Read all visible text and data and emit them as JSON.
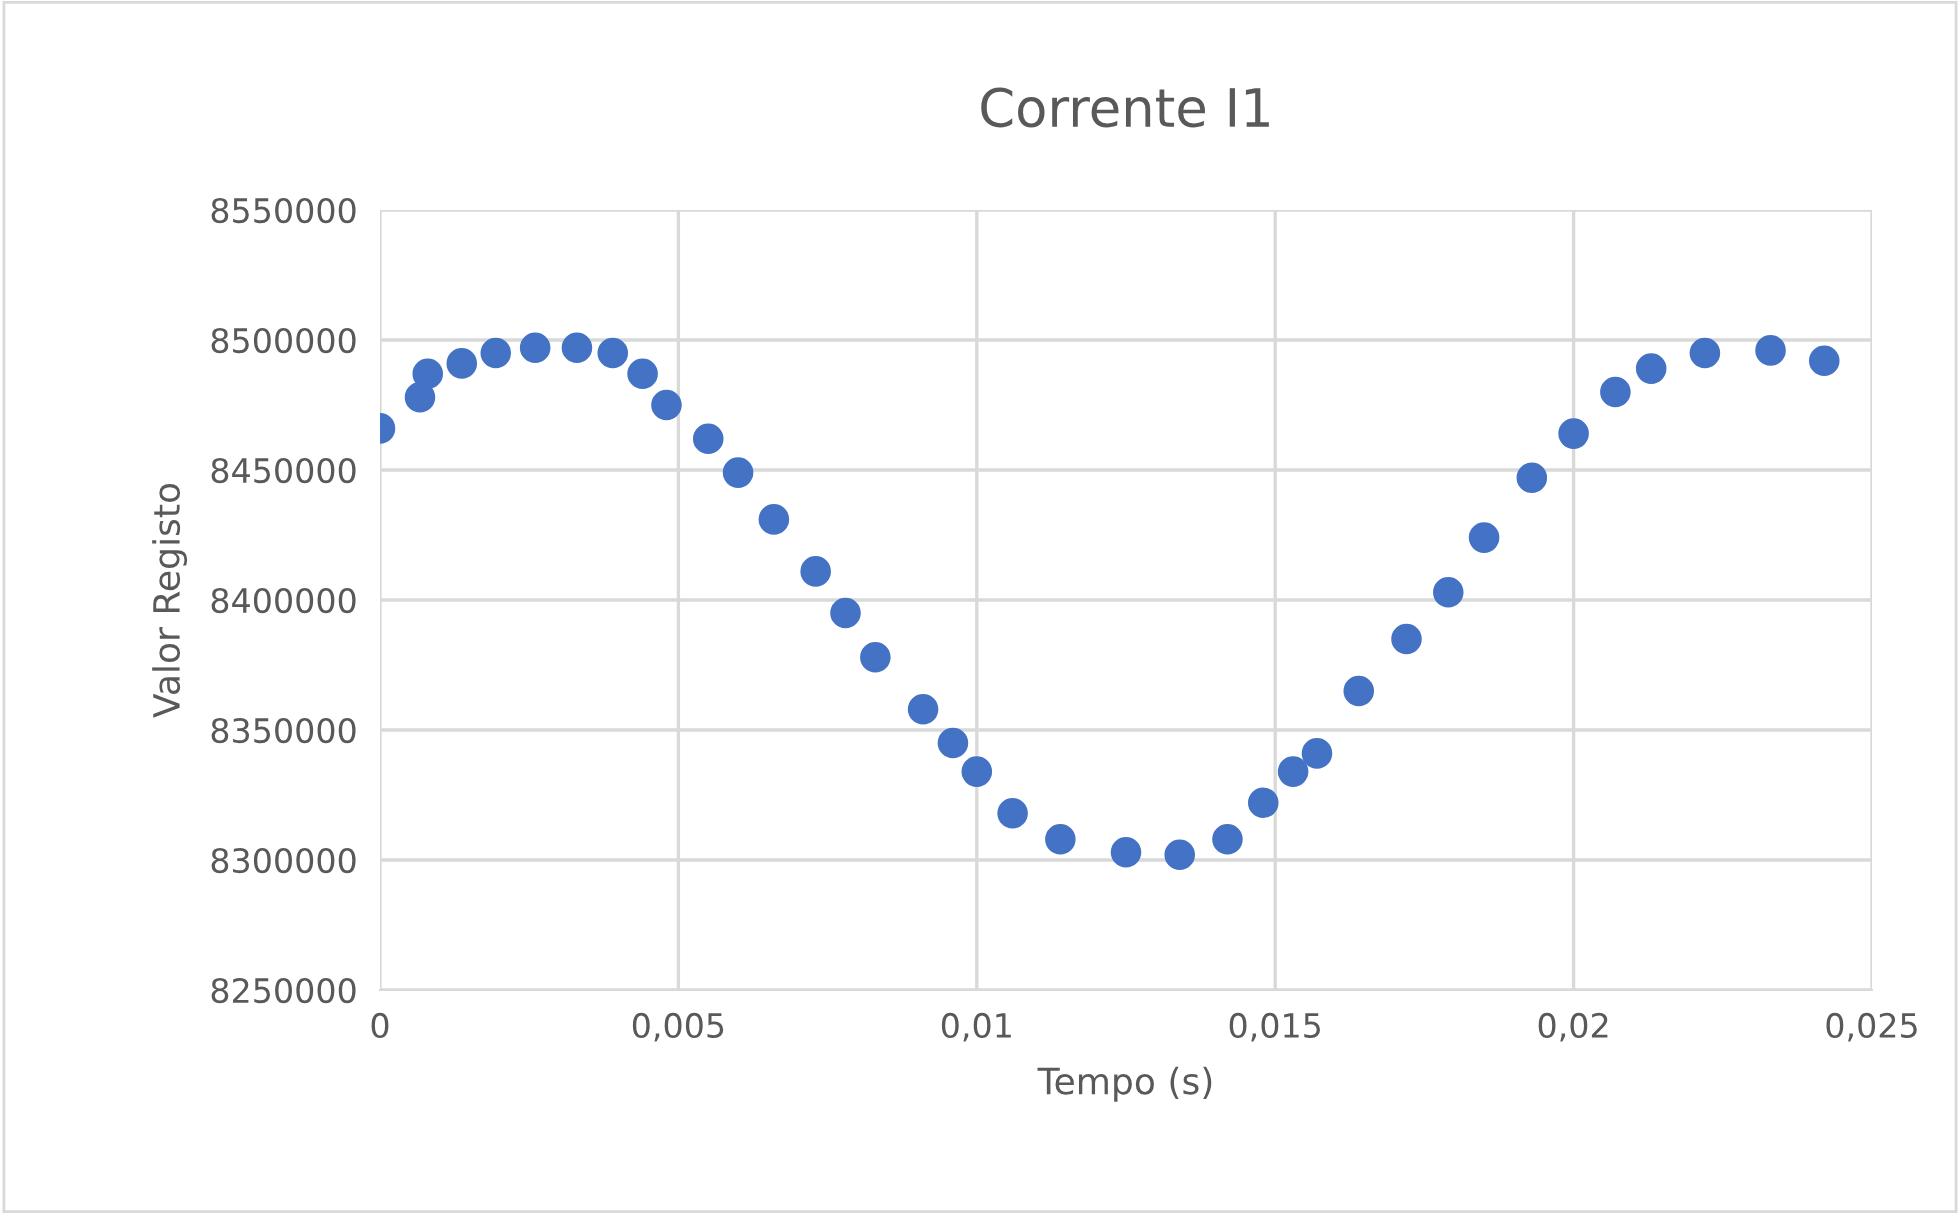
{
  "chart_data": {
    "type": "scatter",
    "title": "Corrente I1",
    "xlabel": "Tempo (s)",
    "ylabel": "Valor Registo",
    "x": [
      0,
      0.00067,
      0.0008,
      0.00137,
      0.00194,
      0.0026,
      0.0033,
      0.0039,
      0.0044,
      0.0048,
      0.0055,
      0.006,
      0.0066,
      0.0073,
      0.0078,
      0.0083,
      0.0091,
      0.0096,
      0.01,
      0.0106,
      0.0114,
      0.0125,
      0.0134,
      0.0142,
      0.0148,
      0.0153,
      0.0157,
      0.0164,
      0.0172,
      0.0179,
      0.0185,
      0.0193,
      0.02,
      0.0207,
      0.0213,
      0.0222,
      0.0233,
      0.0242
    ],
    "series": [
      {
        "color": "#4472c4",
        "values": [
          8466000,
          8478000,
          8487000,
          8491000,
          8495000,
          8497000,
          8497000,
          8495000,
          8487000,
          8475000,
          8462000,
          8449000,
          8431000,
          8411000,
          8395000,
          8378000,
          8358000,
          8345000,
          8334000,
          8318000,
          8308000,
          8303000,
          8302000,
          8308000,
          8322000,
          8334000,
          8341000,
          8365000,
          8385000,
          8403000,
          8424000,
          8447000,
          8464000,
          8480000,
          8489000,
          8495000,
          8496000,
          8492000
        ]
      }
    ],
    "xlim": [
      0,
      0.025
    ],
    "xticks": [
      {
        "value": 0,
        "label": "0"
      },
      {
        "value": 0.005,
        "label": "0,005"
      },
      {
        "value": 0.01,
        "label": "0,01"
      },
      {
        "value": 0.015,
        "label": "0,015"
      },
      {
        "value": 0.02,
        "label": "0,02"
      },
      {
        "value": 0.025,
        "label": "0,025"
      }
    ],
    "ylim": [
      8250000,
      8550000
    ],
    "yticks": [
      8250000,
      8300000,
      8350000,
      8400000,
      8450000,
      8500000,
      8550000
    ],
    "grid": true,
    "marker": "circle"
  }
}
